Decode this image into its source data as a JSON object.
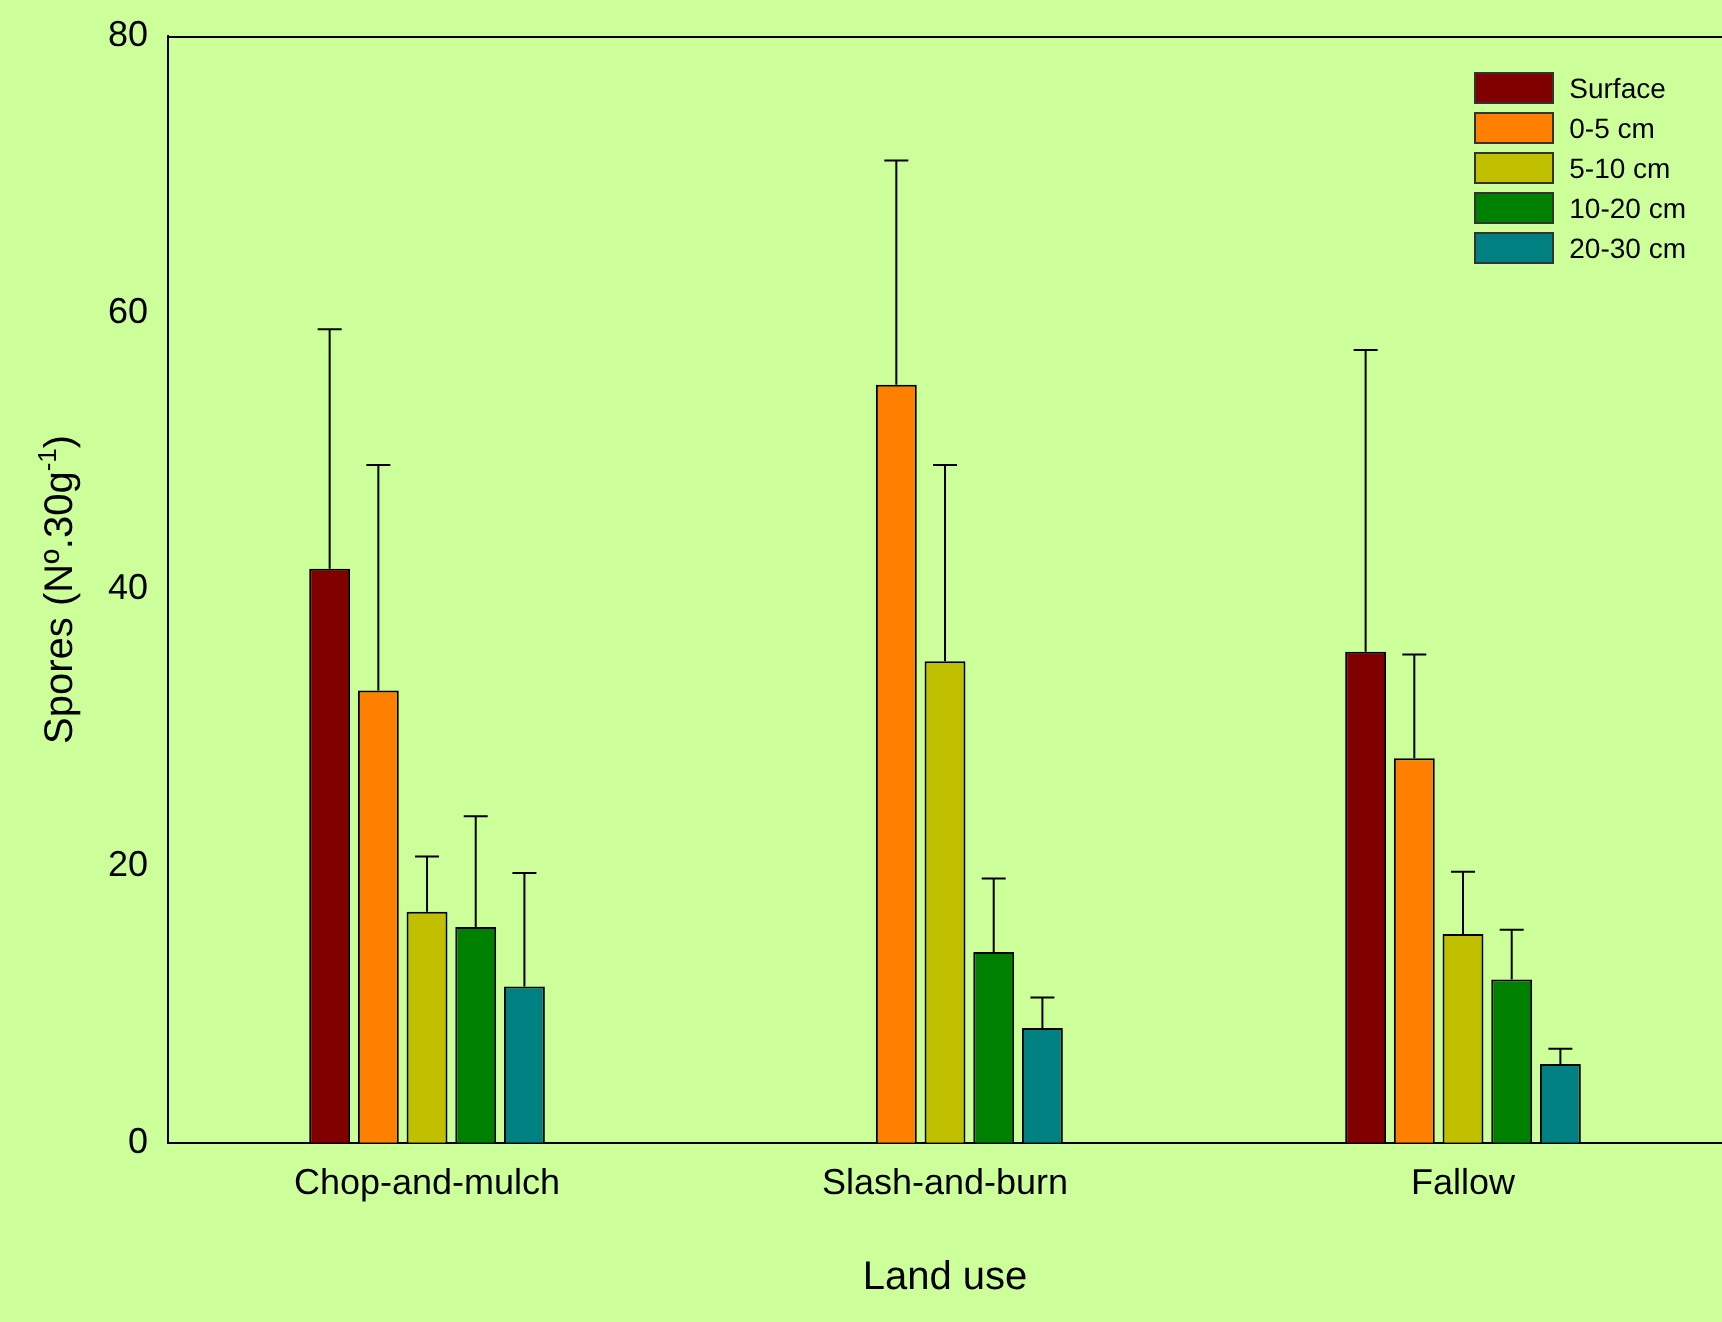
{
  "chart_data": {
    "type": "bar",
    "xlabel": "Land use",
    "ylabel": "Spores (Nº.30g$^{-1}$)",
    "categories": [
      "Chop-and-mulch",
      "Slash-and-burn",
      "Fallow"
    ],
    "ylim": [
      0,
      80
    ],
    "yticks": [
      0,
      20,
      40,
      60,
      80
    ],
    "grid": false,
    "legend": "top right",
    "series": [
      {
        "name": "Surface",
        "color": "#800000",
        "values": [
          41.5,
          null,
          35.5
        ],
        "errors": [
          [
            41.5,
            58.8
          ],
          null,
          [
            35.5,
            57.3
          ]
        ]
      },
      {
        "name": "0-5 cm",
        "color": "#ff8000",
        "values": [
          32.7,
          54.8,
          27.8
        ],
        "errors": [
          [
            32.7,
            49.0
          ],
          [
            54.8,
            71.0
          ],
          [
            27.8,
            35.3
          ]
        ]
      },
      {
        "name": "5-10 cm",
        "color": "#c0c000",
        "values": [
          16.7,
          34.8,
          15.1
        ],
        "errors": [
          [
            16.7,
            20.7
          ],
          [
            34.8,
            49.0
          ],
          [
            15.1,
            19.6
          ]
        ]
      },
      {
        "name": "10-20 cm",
        "color": "#008000",
        "values": [
          15.6,
          13.8,
          11.8
        ],
        "errors": [
          [
            15.6,
            23.6
          ],
          [
            13.8,
            19.1
          ],
          [
            11.8,
            15.4
          ]
        ]
      },
      {
        "name": "20-30 cm",
        "color": "#008080",
        "values": [
          11.3,
          8.3,
          5.7
        ],
        "errors": [
          [
            11.3,
            19.5
          ],
          [
            8.3,
            10.5
          ],
          [
            5.7,
            6.8
          ]
        ]
      }
    ]
  }
}
